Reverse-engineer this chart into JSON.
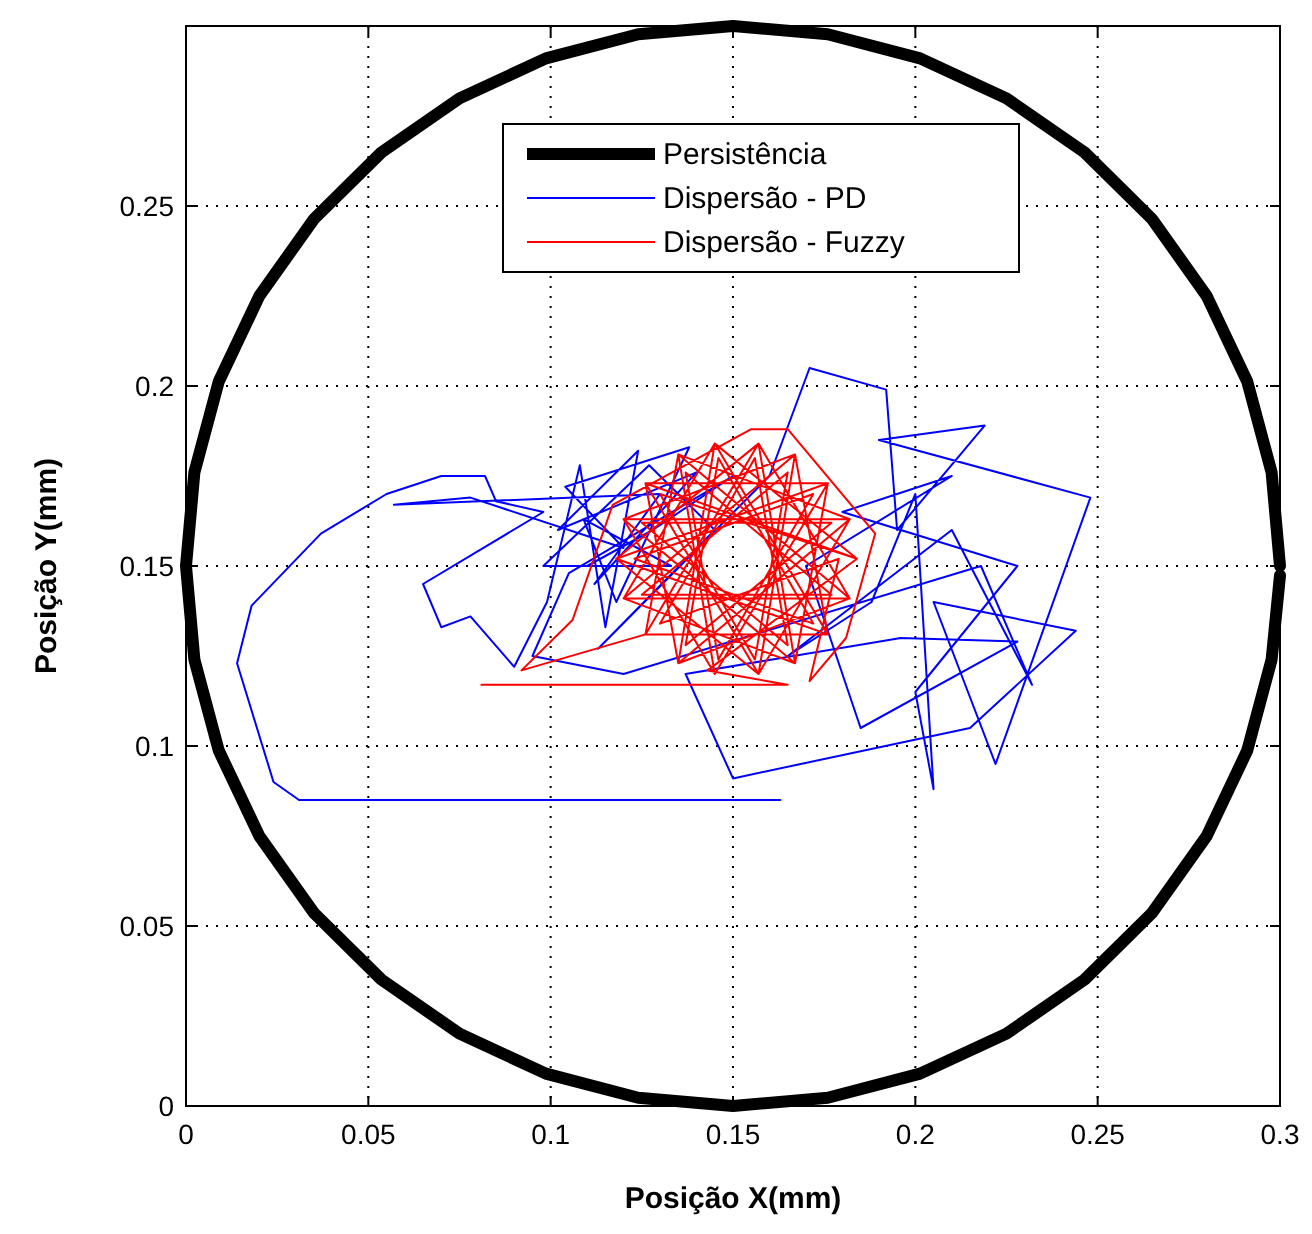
{
  "chart_data": {
    "type": "line",
    "xlabel": "Posição X(mm)",
    "ylabel": "Posição Y(mm)",
    "xlim": [
      0,
      0.3
    ],
    "ylim": [
      0,
      0.3
    ],
    "xticks": [
      0,
      0.05,
      0.1,
      0.15,
      0.2,
      0.25,
      0.3
    ],
    "yticks": [
      0,
      0.05,
      0.1,
      0.15,
      0.2,
      0.25
    ],
    "grid": true,
    "legend": "top",
    "marker": "none",
    "line_style": "solid",
    "series": [
      {
        "name": "Persistência",
        "color": "#000000",
        "x": [
          0.3,
          0.2977,
          0.291,
          0.2799,
          0.2649,
          0.2464,
          0.225,
          0.2013,
          0.176,
          0.15,
          0.124,
          0.0987,
          0.075,
          0.0536,
          0.0351,
          0.0201,
          0.009,
          0.0023,
          0,
          0.0023,
          0.009,
          0.0201,
          0.0351,
          0.0536,
          0.075,
          0.0987,
          0.124,
          0.15,
          0.176,
          0.2013,
          0.225,
          0.2464,
          0.2649,
          0.2799,
          0.291,
          0.2977,
          0.3
        ],
        "values": [
          0.15,
          0.176,
          0.2013,
          0.225,
          0.2464,
          0.2649,
          0.2799,
          0.291,
          0.2977,
          0.3,
          0.2977,
          0.291,
          0.2799,
          0.2649,
          0.2464,
          0.225,
          0.2013,
          0.176,
          0.15,
          0.124,
          0.0987,
          0.075,
          0.0536,
          0.0351,
          0.0201,
          0.009,
          0.0023,
          0,
          0.0023,
          0.009,
          0.0201,
          0.0351,
          0.0536,
          0.075,
          0.0987,
          0.124,
          0.1474
        ]
      },
      {
        "name": "Dispersão - PD",
        "color": "#0000ff",
        "x": [
          0.163,
          0.031,
          0.024,
          0.014,
          0.018,
          0.037,
          0.055,
          0.07,
          0.082,
          0.085,
          0.098,
          0.065,
          0.07,
          0.078,
          0.09,
          0.099,
          0.108,
          0.115,
          0.124,
          0.102,
          0.14,
          0.112,
          0.13,
          0.057,
          0.078,
          0.12,
          0.104,
          0.138,
          0.118,
          0.109,
          0.133,
          0.098,
          0.127,
          0.145,
          0.113,
          0.16,
          0.171,
          0.192,
          0.195,
          0.219,
          0.19,
          0.248,
          0.222,
          0.205,
          0.244,
          0.215,
          0.15,
          0.137,
          0.196,
          0.228,
          0.185,
          0.17,
          0.21,
          0.18,
          0.228,
          0.2,
          0.205,
          0.2,
          0.188,
          0.165,
          0.21,
          0.232,
          0.218,
          0.12,
          0.095,
          0.105,
          0.15,
          0.128,
          0.11
        ],
        "values": [
          0.085,
          0.085,
          0.09,
          0.123,
          0.139,
          0.159,
          0.17,
          0.175,
          0.175,
          0.168,
          0.165,
          0.145,
          0.133,
          0.136,
          0.122,
          0.14,
          0.178,
          0.133,
          0.182,
          0.16,
          0.176,
          0.145,
          0.17,
          0.167,
          0.169,
          0.155,
          0.172,
          0.183,
          0.14,
          0.163,
          0.15,
          0.15,
          0.178,
          0.16,
          0.127,
          0.175,
          0.205,
          0.199,
          0.16,
          0.189,
          0.185,
          0.169,
          0.095,
          0.14,
          0.132,
          0.105,
          0.091,
          0.12,
          0.13,
          0.129,
          0.105,
          0.15,
          0.175,
          0.165,
          0.15,
          0.115,
          0.088,
          0.17,
          0.14,
          0.125,
          0.16,
          0.117,
          0.15,
          0.12,
          0.125,
          0.148,
          0.175,
          0.16,
          0.15
        ]
      },
      {
        "name": "Dispersão - Fuzzy",
        "color": "#ff0000",
        "x": [
          0.081,
          0.165,
          0.143,
          0.184,
          0.126,
          0.157,
          0.167,
          0.12,
          0.182,
          0.135,
          0.145,
          0.176,
          0.118,
          0.176,
          0.145,
          0.135,
          0.182,
          0.12,
          0.167,
          0.157,
          0.126,
          0.092,
          0.106,
          0.117,
          0.155,
          0.165,
          0.189,
          0.181,
          0.171,
          0.179,
          0.13,
          0.156,
          0.165,
          0.125,
          0.177,
          0.137,
          0.146,
          0.172,
          0.123,
          0.172,
          0.146,
          0.137,
          0.177,
          0.125,
          0.165,
          0.156,
          0.13,
          0.184,
          0.145,
          0.12,
          0.167,
          0.176,
          0.126,
          0.135,
          0.182,
          0.157,
          0.118,
          0.157,
          0.182,
          0.135,
          0.126,
          0.176,
          0.167,
          0.12,
          0.145
        ],
        "values": [
          0.117,
          0.117,
          0.121,
          0.152,
          0.173,
          0.12,
          0.181,
          0.141,
          0.141,
          0.181,
          0.12,
          0.173,
          0.152,
          0.131,
          0.184,
          0.123,
          0.163,
          0.163,
          0.123,
          0.184,
          0.131,
          0.121,
          0.135,
          0.167,
          0.188,
          0.188,
          0.159,
          0.13,
          0.118,
          0.152,
          0.134,
          0.18,
          0.128,
          0.162,
          0.162,
          0.128,
          0.18,
          0.134,
          0.152,
          0.17,
          0.124,
          0.176,
          0.142,
          0.142,
          0.176,
          0.124,
          0.17,
          0.152,
          0.184,
          0.141,
          0.123,
          0.173,
          0.173,
          0.123,
          0.141,
          0.184,
          0.152,
          0.12,
          0.163,
          0.181,
          0.131,
          0.131,
          0.181,
          0.163,
          0.12
        ]
      }
    ]
  }
}
